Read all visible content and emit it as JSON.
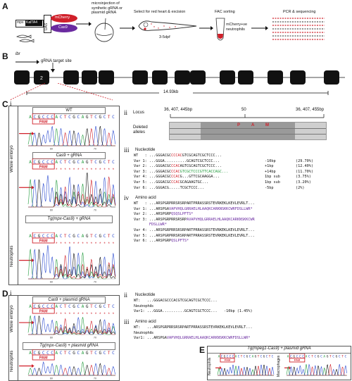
{
  "panels": {
    "A": "A",
    "B": "B",
    "C": "C",
    "D": "D",
    "E": "E",
    "i": "i",
    "ii": "ii",
    "iii": "iii",
    "iv": "iv"
  },
  "panelA": {
    "construct": {
      "mpx": "mpx",
      "kaltа4": "KalTA4",
      "uas": "UAS",
      "mcherry": "mCherry",
      "cas9": "Cas9"
    },
    "step1": "microinjection of\nsynthetic gRNA or\nplasmid gRNA",
    "step2": "Select for red heart & excision",
    "age": "3-5dpf",
    "step3": "FAC sorting",
    "cells": "mCherry+ve\nneutrophils",
    "step4": "PCR & sequencing"
  },
  "panelB": {
    "gene": "lbr",
    "target": "gRNA target site",
    "exon_label": "2",
    "length": "14.93kb",
    "exon_count": 14,
    "highlight_index": 1
  },
  "panelC": {
    "wt": "WT",
    "cas9_grna": "Cas9 + gRNA",
    "tg_grna": "Tg(mpx-Cas9) + gRNA",
    "whole_embryo": "Whole embryo",
    "neutrophils": "Neutrophils",
    "seq": "ACGCCCACTCGCAGTCGCTC",
    "pam": "PAM",
    "locus_label": "Locus",
    "locus_left": "36, 407, 445bp",
    "locus_mid": "50",
    "locus_right": "36, 407, 455bp",
    "deleted_label": "Deleted\nalleles",
    "pam_letters": [
      "P",
      "A",
      "M"
    ],
    "nucleotide_title": "Nucleotide",
    "nuc_rows": [
      {
        "id": "WT   :",
        "a": "...GGGACGC",
        "b": "CCCAC",
        "c": "GTCGCAGTCGCTCCC...",
        "d": "",
        "e": ""
      },
      {
        "id": "Var 1:",
        "a": "...GGGA",
        "b": "",
        "c": "..........GCAGTCGCTCCC...",
        "d": "-10bp",
        "e": "(29.70%)"
      },
      {
        "id": "Var 2:",
        "a": "...GGGACGC",
        "b": "CCAC",
        "c": "AGTCGCAGTCGCTCCC...",
        "d": "+1bp",
        "e": "(12.40%)"
      },
      {
        "id": "Var 3:",
        "a": "...GGGACGC",
        "b": "CCAC",
        "c": "GTCGCTCCCGTTCACCAGC...",
        "d": "+14bp",
        "e": "(11.70%)"
      },
      {
        "id": "Var 4:",
        "a": "...GGGACGC",
        "b": "CCAC",
        "c": "G...GTTCGCAAGGA...",
        "d": "1bp sub",
        "e": "(3.75%)"
      },
      {
        "id": "Var 5:",
        "a": "...GGGACGC",
        "b": "CCAC",
        "c": "GCAGAAGTGC...",
        "d": "1bp sub",
        "e": "(3.20%)"
      },
      {
        "id": "Var 6:",
        "a": "...GGGACG",
        "b": "",
        "c": ".....TCGCTCCC...",
        "d": "-5bp",
        "e": "(2%)"
      }
    ],
    "aa_title": "Amino acid",
    "aa_rows": [
      {
        "id": "WT   :",
        "a": "...ARSPGRPRRSRSRPARTPRRASSRSTEVRKEKLKEVLEVRLT...",
        "b": ""
      },
      {
        "id": "Var 1:",
        "a": "...ARSPGA",
        "b": "VAPVHQLGRRAELHLAAQKCARKNSKKCWRFDSLLWR*"
      },
      {
        "id": "Var 2:",
        "a": "...ARSPGRP",
        "b": "QSQSLPFTS*"
      },
      {
        "id": "Var 3:",
        "a": "...ARSPGRPRRSRSRP",
        "b": "AVAPVHQLGRRAELHLAAQKCARKNSKKCWR"
      },
      {
        "id": "",
        "a": "",
        "b": "FDSLLWR*"
      },
      {
        "id": "Var 4:",
        "a": "...ARSPGRPRRSRSRPARTPRRASSRSTEVRKEKLKEVLEVRLT...",
        "b": ""
      },
      {
        "id": "Var 5:",
        "a": "...ARSPGRPRRSRSRPARTPRRASSRSTEVRKEKLKEVLEVRLT...",
        "b": ""
      },
      {
        "id": "Var 6:",
        "a": "...ARSPGRP",
        "b": "QSLPFTS*"
      }
    ]
  },
  "panelD": {
    "cas9_plasmid": "Cas9 + plasmid gRNA",
    "tg_plasmid": "Tg(mpx-Cas9) + plasmid gRNA",
    "whole_embryo": "Whole embryo",
    "neutrophils": "Neutrophils",
    "nuc_title": "Nucleotide",
    "nuc_wt": "WT:   ...GGGACGCCCACGTCGCAGTCGCTCCC...",
    "nuc_neut": "Neutrophils",
    "nuc_var1": "Var1: ...GGGA..........GCAGTCGCTCCC...   -10bp (1.45%)",
    "aa_title": "Amino acid",
    "aa_wt": "WT:   ...ARSPGRPRRSRSRPARTPRRASSRSTEVRKEKLKEVLEVRLT...",
    "aa_neut": "Neutrophils",
    "aa_var1_a": "Var1: ...ARSPGA",
    "aa_var1_b": "VAPVHQLGRRAELHLAAQKCARKNSKKCWRFDSLLWR*"
  },
  "panelE": {
    "title": "Tg(mpeg1-Cas9) + plasmid gRNA",
    "neutrophils": "Neutrophils",
    "macrophages": "Macrophages"
  },
  "ticks": {
    "a": "60",
    "b": "70"
  },
  "colors": {
    "red": "#d0202a",
    "green": "#1f9a3a",
    "blue": "#2a4ad0",
    "black": "#111111",
    "purple": "#6a2aa0"
  }
}
